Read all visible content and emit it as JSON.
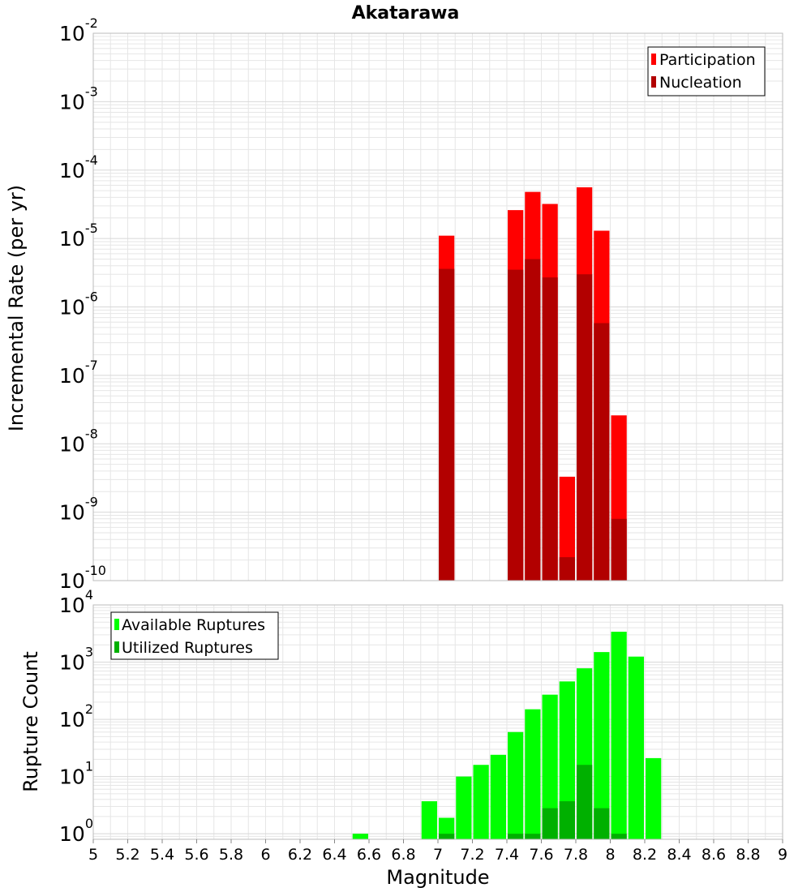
{
  "figure": {
    "title": "Akatarawa",
    "xlabel": "Magnitude"
  },
  "colors": {
    "participation": "#ff0000",
    "nucleation": "#b20000",
    "available": "#00ff00",
    "utilized": "#00b000",
    "grid": "#e6e6e6",
    "frame": "#bbbbbb"
  },
  "chart_data": [
    {
      "type": "bar",
      "title": "Akatarawa",
      "xlabel": "Magnitude",
      "ylabel": "Incremental Rate (per yr)",
      "yscale": "log",
      "ylim": [
        1e-10,
        0.01
      ],
      "xlim": [
        5,
        9
      ],
      "grid": true,
      "legend_position": "top-right",
      "bar_width": 0.1,
      "series": [
        {
          "name": "Participation",
          "x": [
            7.05,
            7.45,
            7.55,
            7.65,
            7.75,
            7.85,
            7.95,
            8.05
          ],
          "values": [
            1.1e-05,
            2.6e-05,
            4.8e-05,
            3.2e-05,
            3.3e-09,
            5.6e-05,
            1.3e-05,
            2.6e-08
          ]
        },
        {
          "name": "Nucleation",
          "x": [
            7.05,
            7.45,
            7.55,
            7.65,
            7.75,
            7.85,
            7.95,
            8.05
          ],
          "values": [
            3.6e-06,
            3.5e-06,
            5e-06,
            2.7e-06,
            2.2e-10,
            3e-06,
            5.8e-07,
            8e-10
          ]
        }
      ],
      "yticks": [
        {
          "value": 1e-10,
          "base": "10",
          "exp": "-10"
        },
        {
          "value": 1e-09,
          "base": "10",
          "exp": "-9"
        },
        {
          "value": 1e-08,
          "base": "10",
          "exp": "-8"
        },
        {
          "value": 1e-07,
          "base": "10",
          "exp": "-7"
        },
        {
          "value": 1e-06,
          "base": "10",
          "exp": "-6"
        },
        {
          "value": 1e-05,
          "base": "10",
          "exp": "-5"
        },
        {
          "value": 0.0001,
          "base": "10",
          "exp": "-4"
        },
        {
          "value": 0.001,
          "base": "10",
          "exp": "-3"
        },
        {
          "value": 0.01,
          "base": "10",
          "exp": "-2"
        }
      ]
    },
    {
      "type": "bar",
      "xlabel": "Magnitude",
      "ylabel": "Rupture Count",
      "yscale": "log",
      "ylim": [
        0.8,
        10000
      ],
      "xlim": [
        5,
        9
      ],
      "grid": true,
      "legend_position": "top-left",
      "bar_width": 0.1,
      "series": [
        {
          "name": "Available Ruptures",
          "x": [
            6.55,
            6.95,
            7.05,
            7.15,
            7.25,
            7.35,
            7.45,
            7.55,
            7.65,
            7.75,
            7.85,
            7.95,
            8.05,
            8.15,
            8.25
          ],
          "values": [
            1,
            3.7,
            1.9,
            10,
            16,
            24,
            60,
            150,
            270,
            460,
            780,
            1500,
            3400,
            1250,
            21
          ]
        },
        {
          "name": "Utilized Ruptures",
          "x": [
            7.05,
            7.45,
            7.55,
            7.65,
            7.75,
            7.85,
            7.95,
            8.05
          ],
          "values": [
            1,
            1,
            1,
            2.8,
            3.7,
            16,
            2.8,
            1
          ]
        }
      ],
      "yticks": [
        {
          "value": 1,
          "base": "10",
          "exp": "0"
        },
        {
          "value": 10,
          "base": "10",
          "exp": "1"
        },
        {
          "value": 100,
          "base": "10",
          "exp": "2"
        },
        {
          "value": 1000,
          "base": "10",
          "exp": "3"
        },
        {
          "value": 10000,
          "base": "10",
          "exp": "4"
        }
      ],
      "xticks": [
        "5",
        "5.2",
        "5.4",
        "5.6",
        "5.8",
        "6",
        "6.2",
        "6.4",
        "6.6",
        "6.8",
        "7",
        "7.2",
        "7.4",
        "7.6",
        "7.8",
        "8",
        "8.2",
        "8.4",
        "8.6",
        "8.8",
        "9"
      ]
    }
  ]
}
